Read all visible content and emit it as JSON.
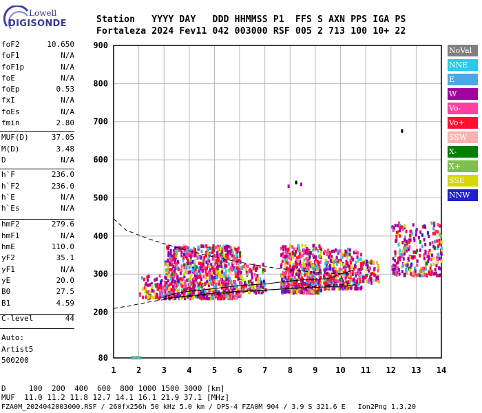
{
  "logo": {
    "top": "Lowell",
    "bottom": "DIGISONDE"
  },
  "header": {
    "line1": "Station   YYYY DAY   DDD HHMMSS P1  FFS S AXN PPS IGA PS",
    "line2": "Fortaleza 2024 Fev11 042 003000 RSF 005 2 713 100 10+ 22"
  },
  "params": [
    {
      "label": "foF2",
      "value": "10.650"
    },
    {
      "label": "foF1",
      "value": "N/A"
    },
    {
      "label": "foF1p",
      "value": "N/A"
    },
    {
      "label": "foE",
      "value": "N/A"
    },
    {
      "label": "foEp",
      "value": "0.53"
    },
    {
      "label": "fxI",
      "value": "N/A"
    },
    {
      "label": "foEs",
      "value": "N/A"
    },
    {
      "label": "fmin",
      "value": "2.80"
    },
    {
      "label": "MUF(D)",
      "value": "37.05"
    },
    {
      "label": "M(D)",
      "value": "3.48"
    },
    {
      "label": "D",
      "value": "N/A"
    },
    {
      "label": "h`F",
      "value": "236.0"
    },
    {
      "label": "h`F2",
      "value": "236.0"
    },
    {
      "label": "h`E",
      "value": "N/A"
    },
    {
      "label": "h`Es",
      "value": "N/A"
    },
    {
      "label": "hmF2",
      "value": "279.6"
    },
    {
      "label": "hmF1",
      "value": "N/A"
    },
    {
      "label": "hmE",
      "value": "110.0"
    },
    {
      "label": "yF2",
      "value": "35.1"
    },
    {
      "label": "yF1",
      "value": "N/A"
    },
    {
      "label": "yE",
      "value": "20.0"
    },
    {
      "label": "B0",
      "value": "27.5"
    },
    {
      "label": "B1",
      "value": "4.59"
    },
    {
      "label": "C-level",
      "value": "44"
    }
  ],
  "auto": [
    "Auto:",
    "Artist5",
    "500200"
  ],
  "legend": [
    {
      "label": "NoVal",
      "color": "#808080"
    },
    {
      "label": "NNE",
      "color": "#22ccf0"
    },
    {
      "label": "E",
      "color": "#4aa8e8"
    },
    {
      "label": "W",
      "color": "#a000a0"
    },
    {
      "label": "Vo-",
      "color": "#ff40a0"
    },
    {
      "label": "Vo+",
      "color": "#ff1030"
    },
    {
      "label": "SSW",
      "color": "#ffb0b0"
    },
    {
      "label": "X-",
      "color": "#008000"
    },
    {
      "label": "X+",
      "color": "#7fbf50"
    },
    {
      "label": "SSE",
      "color": "#d8d800"
    },
    {
      "label": "NNW",
      "color": "#2020d0"
    }
  ],
  "footer": {
    "line1": "D     100  200  400  600  800 1000 1500 3000 [km]",
    "line2": "MUF  11.0 11.2 11.8 12.7 14.1 16.1 21.9 37.1 [MHz]",
    "line3": "FZA0M_2024042003000.RSF / 260fx256h 50 kHz 5.0 km / DPS-4 FZA0M 904 / 3.9 S 321.6 E   Ion2Png 1.3.20"
  },
  "chart_data": {
    "type": "scatter",
    "title": "",
    "xlabel": "",
    "ylabel": "",
    "xlim": [
      1,
      14
    ],
    "ylim": [
      80,
      900
    ],
    "xticks": [
      1,
      2,
      3,
      4,
      5,
      6,
      7,
      8,
      9,
      10,
      11,
      12,
      13,
      14
    ],
    "yticks": [
      80,
      200,
      300,
      400,
      500,
      600,
      700,
      800,
      900
    ],
    "grid": true,
    "clusters": [
      {
        "name": "F-trace",
        "x_range": [
          2.0,
          10.8
        ],
        "h_range": [
          240,
          360
        ]
      },
      {
        "name": "F-trace upper",
        "x_range": [
          10.0,
          14.0
        ],
        "h_range": [
          290,
          440
        ]
      },
      {
        "name": "spread low",
        "x_range": [
          1.7,
          2.1
        ],
        "h_range": [
          82,
          88
        ]
      },
      {
        "name": "isolated",
        "x": [
          7.9,
          8.2,
          8.4,
          12.4
        ],
        "y": [
          535,
          545,
          540,
          680
        ]
      }
    ],
    "lines": [
      {
        "name": "profile-top",
        "style": "dashed",
        "x": [
          1.0,
          1.5,
          2.5,
          3.5,
          4.5,
          5.5,
          6.5,
          7.5,
          8.5,
          9.5,
          10.5
        ],
        "y": [
          445,
          415,
          390,
          370,
          352,
          338,
          325,
          315,
          308,
          302,
          300
        ]
      },
      {
        "name": "profile-bottom",
        "style": "dashed",
        "x": [
          1.0,
          1.5,
          2.5,
          3.5,
          4.5,
          5.5,
          6.5,
          7.5,
          8.5,
          9.5,
          10.5
        ],
        "y": [
          210,
          215,
          228,
          238,
          244,
          250,
          255,
          260,
          265,
          270,
          275
        ]
      },
      {
        "name": "trace-fit",
        "style": "solid",
        "x": [
          2.9,
          3.5,
          4.0,
          4.5,
          5.0,
          5.5,
          6.0,
          6.5,
          7.0,
          7.5,
          8.0,
          8.5,
          9.0,
          9.5,
          10.0,
          10.5
        ],
        "y": [
          238,
          250,
          255,
          258,
          262,
          266,
          270,
          272,
          274,
          278,
          282,
          285,
          286,
          288,
          300,
          310
        ]
      },
      {
        "name": "virtual-height",
        "style": "solid",
        "x": [
          3.0,
          4.0,
          5.0,
          6.0,
          7.0,
          8.0,
          9.0,
          10.0,
          10.6
        ],
        "y": [
          236,
          243,
          250,
          255,
          258,
          262,
          265,
          268,
          272
        ]
      }
    ]
  }
}
